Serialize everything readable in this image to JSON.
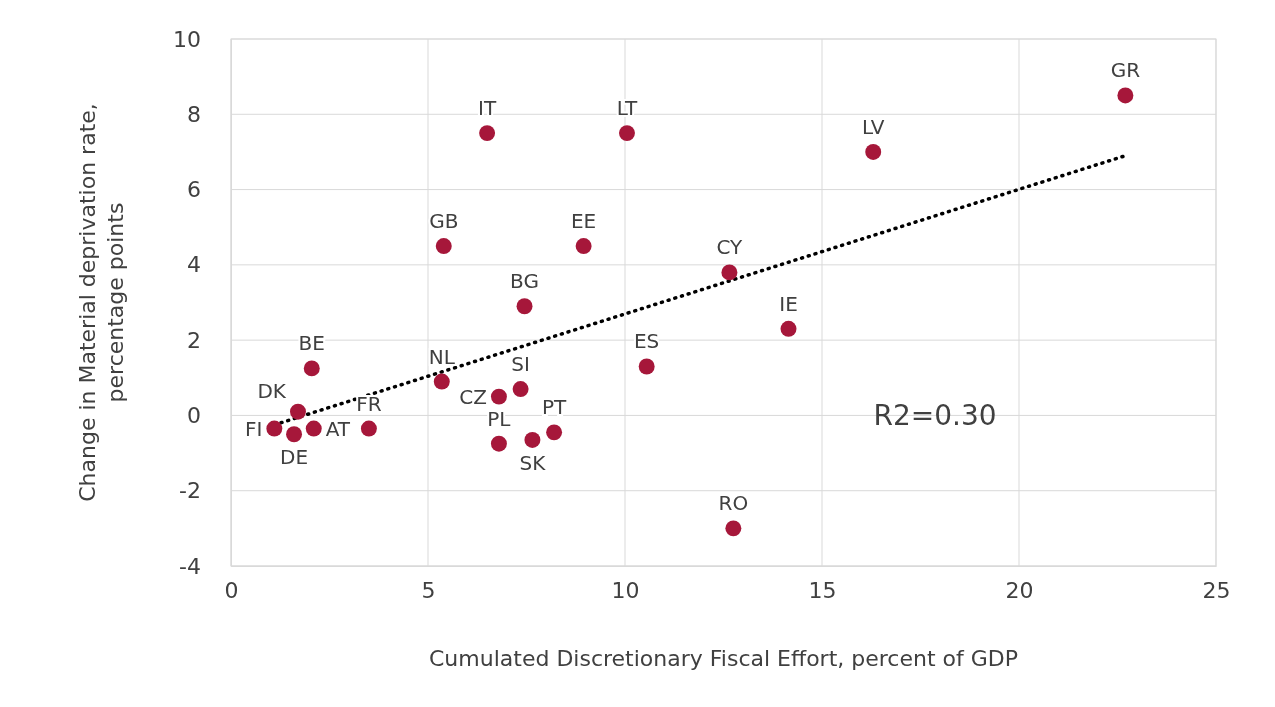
{
  "chart_data": {
    "type": "scatter",
    "xlabel": "Cumulated Discretionary Fiscal Effort, percent of GDP",
    "ylabel": "Change in Material deprivation rate, percentage points",
    "xlim": [
      0,
      25
    ],
    "xticks": [
      0,
      5,
      10,
      15,
      20,
      25
    ],
    "ylim": [
      -4,
      10
    ],
    "yticks": [
      -4,
      -2,
      0,
      2,
      4,
      6,
      8,
      10
    ],
    "grid": true,
    "marker": "circle",
    "series": [
      {
        "color": "#a6173a",
        "x": [
          22.7,
          16.3,
          6.5,
          10.05,
          5.4,
          8.95,
          7.45,
          12.65,
          14.15,
          10.55,
          12.75,
          2.05,
          1.7,
          1.1,
          2.1,
          1.6,
          3.5,
          5.35,
          6.8,
          7.35,
          6.8,
          7.65,
          8.2
        ],
        "values": [
          8.5,
          7.0,
          7.5,
          7.5,
          4.5,
          4.5,
          2.9,
          3.8,
          2.3,
          1.3,
          -3.0,
          1.25,
          0.1,
          -0.35,
          -0.35,
          -0.5,
          -0.35,
          0.9,
          0.5,
          0.7,
          -0.75,
          -0.65,
          -0.45
        ]
      },
      {
        "type": "line",
        "color": "#000000",
        "line_style": "dotted",
        "marker": "none",
        "x": [
          1.1,
          22.7
        ],
        "values": [
          -0.25,
          6.9
        ]
      }
    ],
    "annotations": [
      {
        "text": "GR",
        "x": 22.7,
        "y": 8.5
      },
      {
        "text": "LV",
        "x": 16.3,
        "y": 7.0
      },
      {
        "text": "IT",
        "x": 6.5,
        "y": 7.5
      },
      {
        "text": "LT",
        "x": 10.05,
        "y": 7.5
      },
      {
        "text": "GB",
        "x": 5.4,
        "y": 4.5
      },
      {
        "text": "EE",
        "x": 8.95,
        "y": 4.5
      },
      {
        "text": "BG",
        "x": 7.45,
        "y": 2.9
      },
      {
        "text": "CY",
        "x": 12.65,
        "y": 3.8
      },
      {
        "text": "IE",
        "x": 14.15,
        "y": 2.3
      },
      {
        "text": "ES",
        "x": 10.55,
        "y": 1.3
      },
      {
        "text": "RO",
        "x": 12.75,
        "y": -3.0
      },
      {
        "text": "BE",
        "x": 2.05,
        "y": 1.25
      },
      {
        "text": "DK",
        "x": 1.7,
        "y": 0.1
      },
      {
        "text": "FI",
        "x": 1.1,
        "y": -0.35
      },
      {
        "text": "AT",
        "x": 2.1,
        "y": -0.35
      },
      {
        "text": "DE",
        "x": 1.6,
        "y": -0.5
      },
      {
        "text": "FR",
        "x": 3.5,
        "y": -0.35
      },
      {
        "text": "NL",
        "x": 5.35,
        "y": 0.9
      },
      {
        "text": "CZ",
        "x": 6.8,
        "y": 0.5
      },
      {
        "text": "SI",
        "x": 7.35,
        "y": 0.7
      },
      {
        "text": "PL",
        "x": 6.8,
        "y": -0.75
      },
      {
        "text": "SK",
        "x": 7.65,
        "y": -0.65
      },
      {
        "text": "PT",
        "x": 8.2,
        "y": -0.45
      },
      "R2=0.30"
    ]
  }
}
